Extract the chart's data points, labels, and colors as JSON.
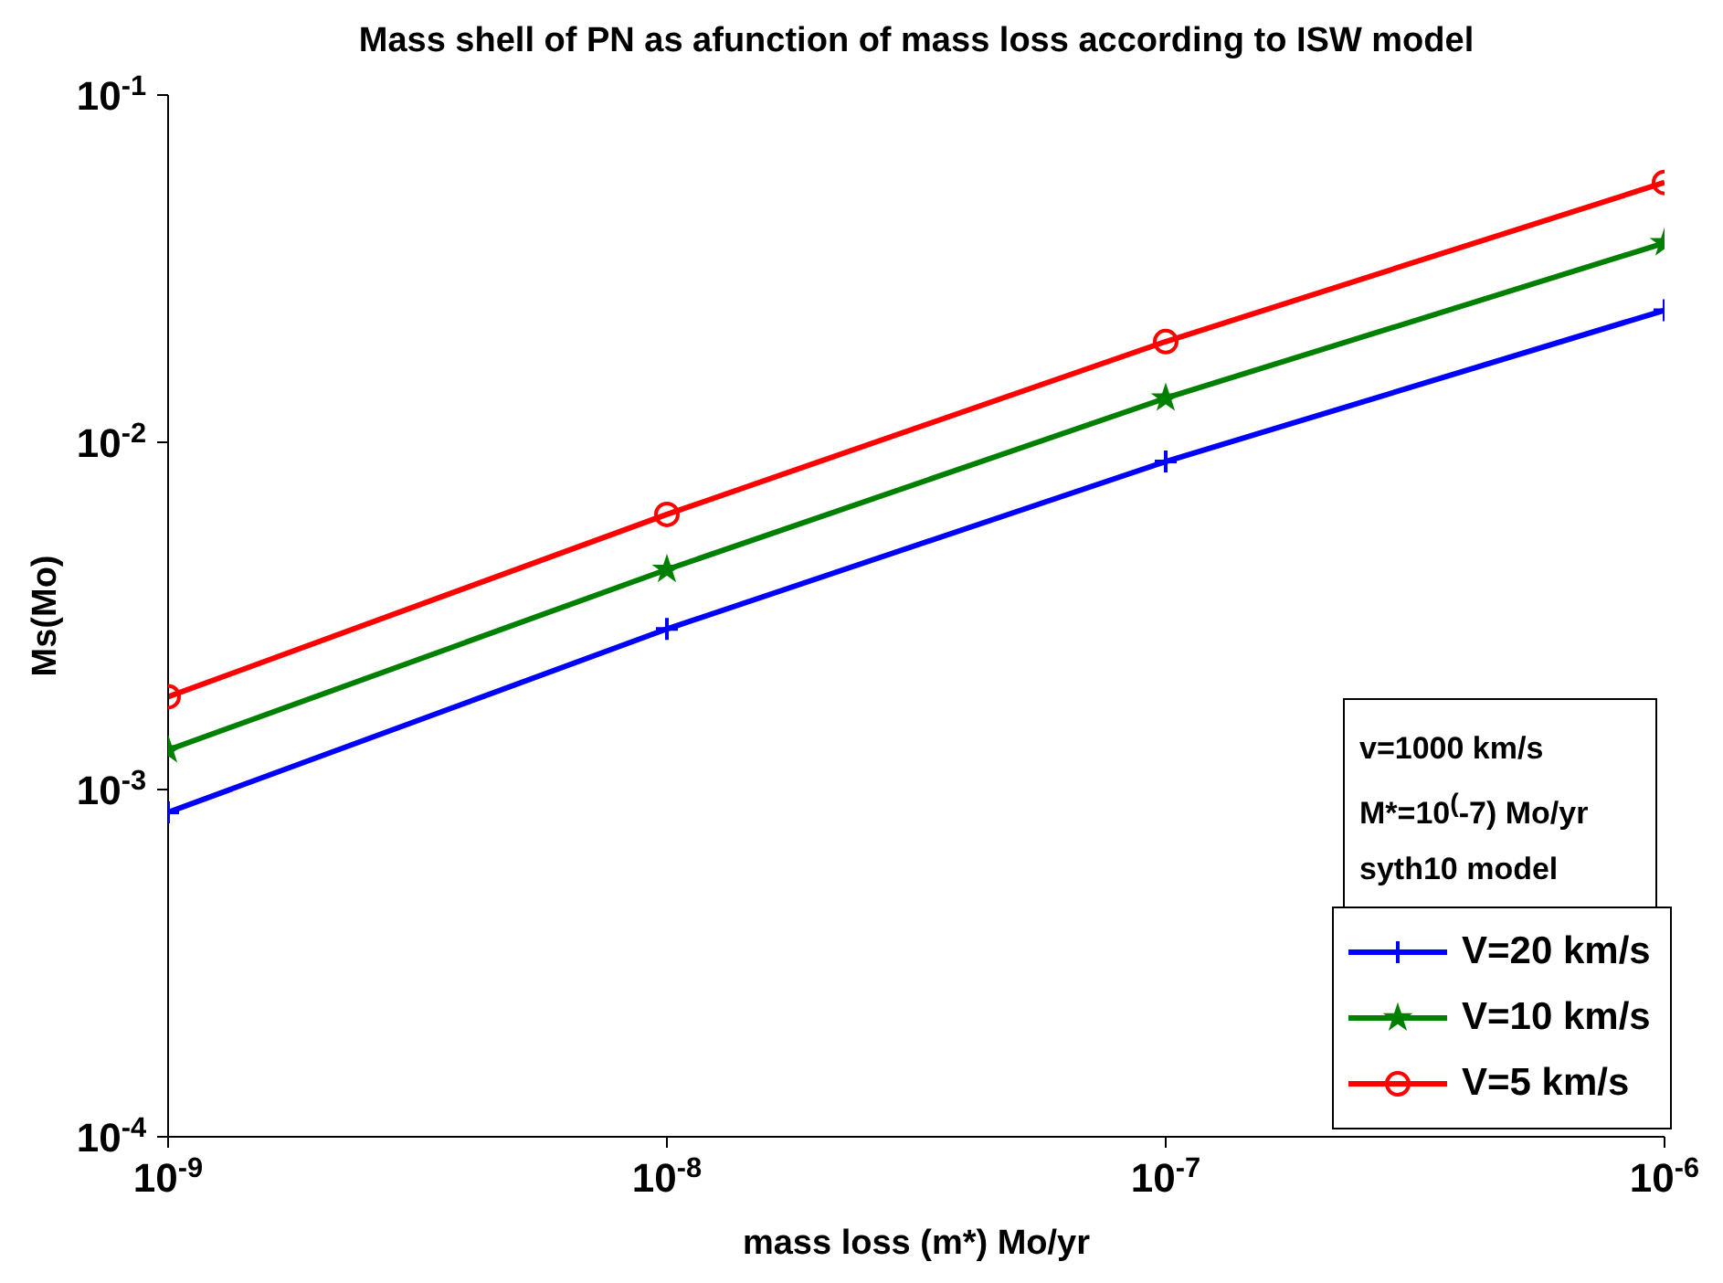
{
  "chart_data": {
    "type": "line",
    "title": "Mass shell of PN as afunction of  mass loss  according to ISW model",
    "xlabel": "mass loss (m*) Mo/yr",
    "ylabel": "Ms(Mo)",
    "x": [
      1e-09,
      1e-08,
      1e-07,
      1e-06
    ],
    "series": [
      {
        "name": "V=20 km/s",
        "color": "#0000ff",
        "marker": "cross",
        "values": [
          0.00086,
          0.0029,
          0.0088,
          0.024
        ]
      },
      {
        "name": "V=10 km/s",
        "color": "#008000",
        "marker": "star",
        "values": [
          0.0013,
          0.0043,
          0.0134,
          0.0375
        ]
      },
      {
        "name": "V=5 km/s",
        "color": "#ff0000",
        "marker": "circle",
        "values": [
          0.00185,
          0.0062,
          0.0195,
          0.056
        ]
      }
    ],
    "log": "xy",
    "xlim": [
      1e-09,
      1e-06
    ],
    "ylim": [
      0.0001,
      0.1
    ],
    "xticks": [
      {
        "value": 1e-09,
        "label": "10$^{-9}$"
      },
      {
        "value": 1e-08,
        "label": "10$^{-8}$"
      },
      {
        "value": 1e-07,
        "label": "10$^{-7}$"
      },
      {
        "value": 1e-06,
        "label": "10$^{-6}$"
      }
    ],
    "yticks": [
      {
        "value": 0.0001,
        "label": "10$^{-4}$"
      },
      {
        "value": 0.001,
        "label": "10$^{-3}$"
      },
      {
        "value": 0.01,
        "label": "10$^{-2}$"
      },
      {
        "value": 0.1,
        "label": "10$^{-1}$"
      }
    ],
    "grid": false,
    "legend": "bottom right",
    "line_style": "solid",
    "annotations": [
      "v=1000 km/s",
      "M*=10$^{(}$-7) Mo/yr",
      "syth10 model"
    ]
  }
}
